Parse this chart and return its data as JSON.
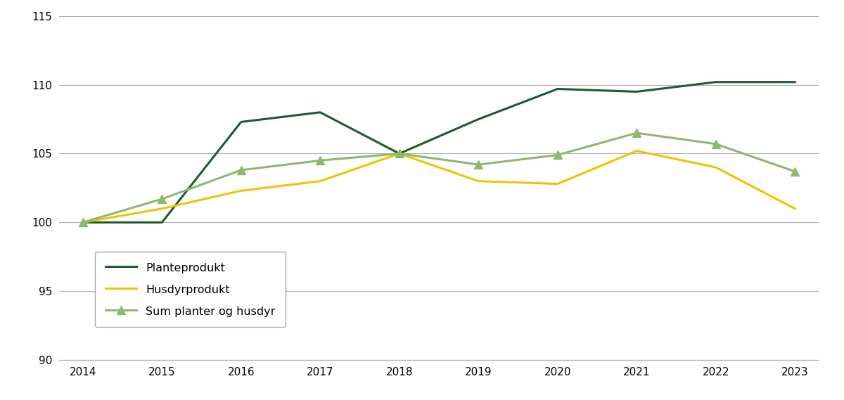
{
  "years": [
    2014,
    2015,
    2016,
    2017,
    2018,
    2019,
    2020,
    2021,
    2022,
    2023
  ],
  "planteprodukt": [
    100.0,
    100.0,
    107.3,
    108.0,
    105.0,
    107.5,
    109.7,
    109.5,
    110.2,
    110.2
  ],
  "husdyrprodukt": [
    100.0,
    101.0,
    102.3,
    103.0,
    105.0,
    103.0,
    102.8,
    105.2,
    104.0,
    101.0
  ],
  "sum_planter_husdyr": [
    100.0,
    101.7,
    103.8,
    104.5,
    105.0,
    104.2,
    104.9,
    106.5,
    105.7,
    103.7
  ],
  "planteprodukt_color": "#1a5c2a",
  "husdyrprodukt_color": "#f5c100",
  "sum_color": "#8db870",
  "ylim": [
    90,
    115
  ],
  "yticks": [
    90,
    95,
    100,
    105,
    110,
    115
  ],
  "xlim_min": 2013.7,
  "xlim_max": 2023.3,
  "legend_labels": [
    "Planteprodukt",
    "Husdyrprodukt",
    "Sum planter og husdyr"
  ],
  "background_color": "#ffffff",
  "grid_color": "#b0b0b0",
  "linewidth": 2.2,
  "marker_size": 8,
  "tick_fontsize": 11
}
